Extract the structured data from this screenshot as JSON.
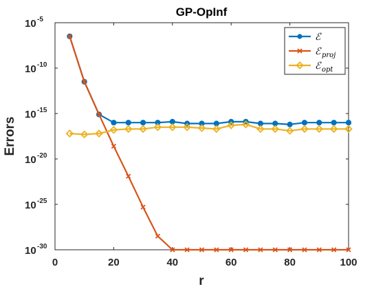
{
  "chart_data": {
    "type": "line",
    "title": "GP-OpInf",
    "xlabel": "r",
    "ylabel": "Errors",
    "xlim": [
      0,
      100
    ],
    "ylim_log10": [
      -30,
      -5
    ],
    "yscale": "log",
    "grid": false,
    "legend_position": "top-right",
    "x_ticks": [
      "0",
      "20",
      "40",
      "60",
      "80",
      "100"
    ],
    "x_tick_values": [
      0,
      20,
      40,
      60,
      80,
      100
    ],
    "y_ticks": [
      {
        "base": "10",
        "exp": "-5",
        "value": -5
      },
      {
        "base": "10",
        "exp": "-10",
        "value": -10
      },
      {
        "base": "10",
        "exp": "-15",
        "value": -15
      },
      {
        "base": "10",
        "exp": "-20",
        "value": -20
      },
      {
        "base": "10",
        "exp": "-25",
        "value": -25
      },
      {
        "base": "10",
        "exp": "-30",
        "value": -30
      }
    ],
    "x": [
      5,
      10,
      15,
      20,
      25,
      30,
      35,
      40,
      45,
      50,
      55,
      60,
      65,
      70,
      75,
      80,
      85,
      90,
      95,
      100
    ],
    "series": [
      {
        "name": "E",
        "legend_main": "ℰ",
        "legend_sub": "",
        "color": "#0072BD",
        "marker": "circle",
        "log10_values": [
          -6.5,
          -11.5,
          -15.1,
          -16.0,
          -16.0,
          -16.0,
          -16.0,
          -15.9,
          -16.1,
          -16.1,
          -16.1,
          -15.9,
          -15.9,
          -16.1,
          -16.1,
          -16.2,
          -16.0,
          -16.0,
          -16.0,
          -16.0
        ]
      },
      {
        "name": "E_proj",
        "legend_main": "ℰ",
        "legend_sub": "proj",
        "color": "#D95319",
        "marker": "x",
        "log10_values": [
          -6.5,
          -11.5,
          -15.1,
          -18.6,
          -21.9,
          -25.3,
          -28.5,
          -30.6,
          -30.8,
          -30.9,
          -31.0,
          -31.1,
          -31.2,
          -31.2,
          -31.2,
          -31.3,
          -31.3,
          -31.3,
          -31.3,
          -31.3
        ]
      },
      {
        "name": "E_opt",
        "legend_main": "ℰ",
        "legend_sub": "opt",
        "color": "#EDB120",
        "marker": "diamond",
        "log10_values": [
          -17.2,
          -17.3,
          -17.2,
          -16.8,
          -16.7,
          -16.7,
          -16.5,
          -16.5,
          -16.5,
          -16.6,
          -16.7,
          -16.3,
          -16.2,
          -16.7,
          -16.7,
          -16.9,
          -16.7,
          -16.7,
          -16.7,
          -16.7
        ]
      }
    ]
  }
}
